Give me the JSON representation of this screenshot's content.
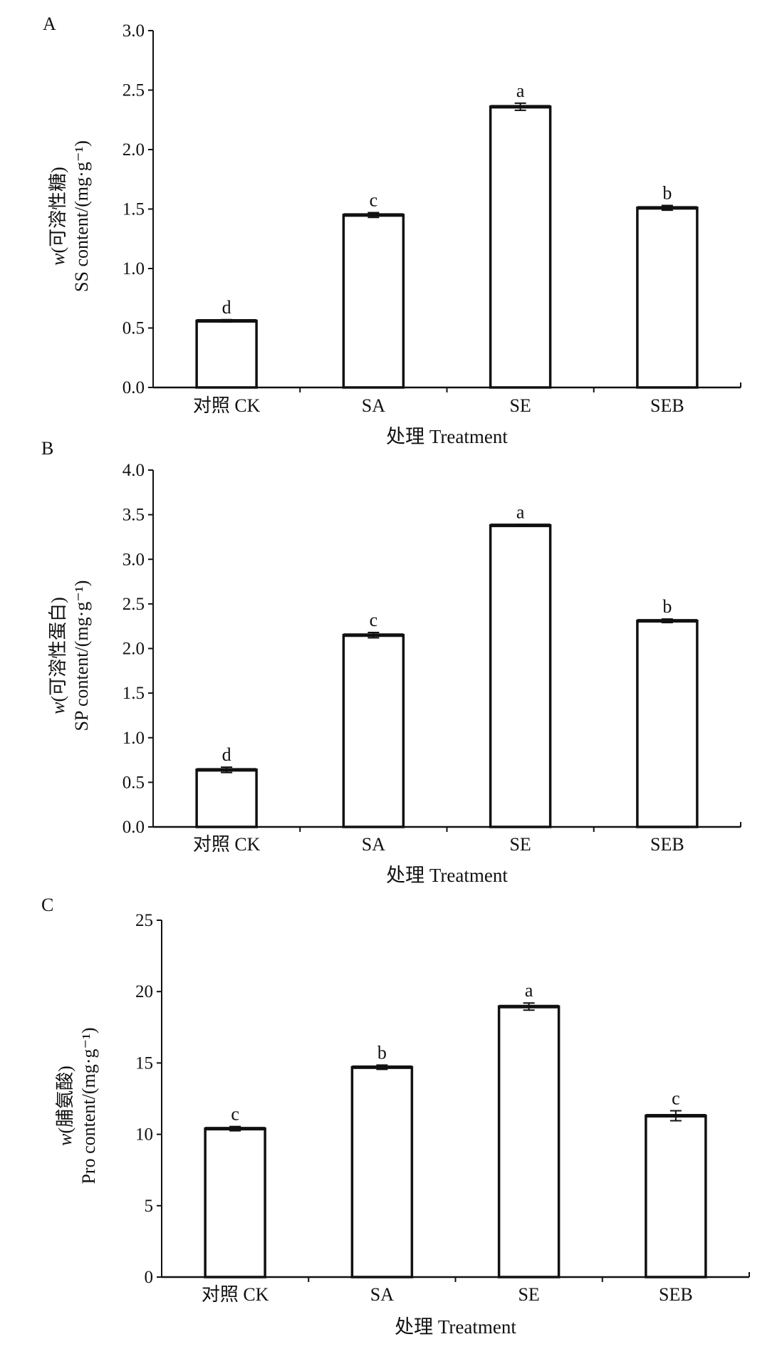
{
  "chart_data": [
    {
      "type": "bar",
      "panel_label": "A",
      "categories": [
        "对照 CK",
        "SA",
        "SE",
        "SEB"
      ],
      "values": [
        0.56,
        1.45,
        2.36,
        1.51
      ],
      "errors": [
        0.01,
        0.02,
        0.03,
        0.02
      ],
      "significance": [
        "d",
        "c",
        "a",
        "b"
      ],
      "xlabel": "处理 Treatment",
      "ylabel_line1_var": "w",
      "ylabel_line1": "(可溶性糖)",
      "ylabel_line2": "SS content/(mg·g⁻¹)",
      "ylim": [
        0,
        3.0
      ],
      "yticks": [
        "0.0",
        "0.5",
        "1.0",
        "1.5",
        "2.0",
        "2.5",
        "3.0"
      ],
      "ystep": 0.5,
      "grid": false
    },
    {
      "type": "bar",
      "panel_label": "B",
      "categories": [
        "对照 CK",
        "SA",
        "SE",
        "SEB"
      ],
      "values": [
        0.64,
        2.15,
        3.38,
        2.31
      ],
      "errors": [
        0.03,
        0.03,
        0.01,
        0.02
      ],
      "significance": [
        "d",
        "c",
        "a",
        "b"
      ],
      "xlabel": "处理 Treatment",
      "ylabel_line1_var": "w",
      "ylabel_line1": "(可溶性蛋白)",
      "ylabel_line2": "SP content/(mg·g⁻¹)",
      "ylim": [
        0,
        4.0
      ],
      "yticks": [
        "0.0",
        "0.5",
        "1.0",
        "1.5",
        "2.0",
        "2.5",
        "3.0",
        "3.5",
        "4.0"
      ],
      "ystep": 0.5,
      "grid": false
    },
    {
      "type": "bar",
      "panel_label": "C",
      "categories": [
        "对照 CK",
        "SA",
        "SE",
        "SEB"
      ],
      "values": [
        10.4,
        14.7,
        18.95,
        11.3
      ],
      "errors": [
        0.15,
        0.15,
        0.25,
        0.35
      ],
      "significance": [
        "c",
        "b",
        "a",
        "c"
      ],
      "xlabel": "处理 Treatment",
      "ylabel_line1_var": "w",
      "ylabel_line1": "(脯氨酸)",
      "ylabel_line2": "Pro content/(mg·g⁻¹)",
      "ylim": [
        0,
        25
      ],
      "yticks": [
        "0",
        "5",
        "10",
        "15",
        "20",
        "25"
      ],
      "ystep": 5,
      "grid": false
    }
  ]
}
